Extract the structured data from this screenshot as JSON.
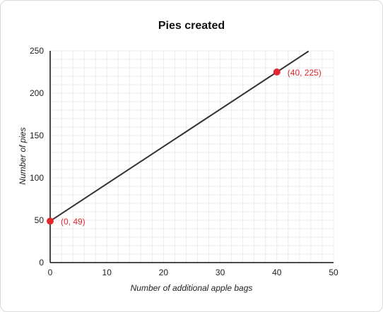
{
  "chart_data": {
    "type": "line",
    "title": "Pies created",
    "xlabel": "Number of additional apple bags",
    "ylabel": "Number of pies",
    "xlim": [
      0,
      50
    ],
    "ylim": [
      0,
      250
    ],
    "x_ticks": [
      "0",
      "10",
      "20",
      "30",
      "40",
      "50"
    ],
    "y_ticks": [
      "0",
      "50",
      "100",
      "150",
      "200",
      "250"
    ],
    "grid": true,
    "series": [
      {
        "x": [
          0,
          45.6
        ],
        "y": [
          49,
          249.6
        ],
        "color": "#333333"
      }
    ],
    "points": [
      {
        "x": 0,
        "y": 49,
        "label": "(0, 49)"
      },
      {
        "x": 40,
        "y": 225,
        "label": "(40, 225)"
      }
    ],
    "point_color": "#e0282e"
  }
}
